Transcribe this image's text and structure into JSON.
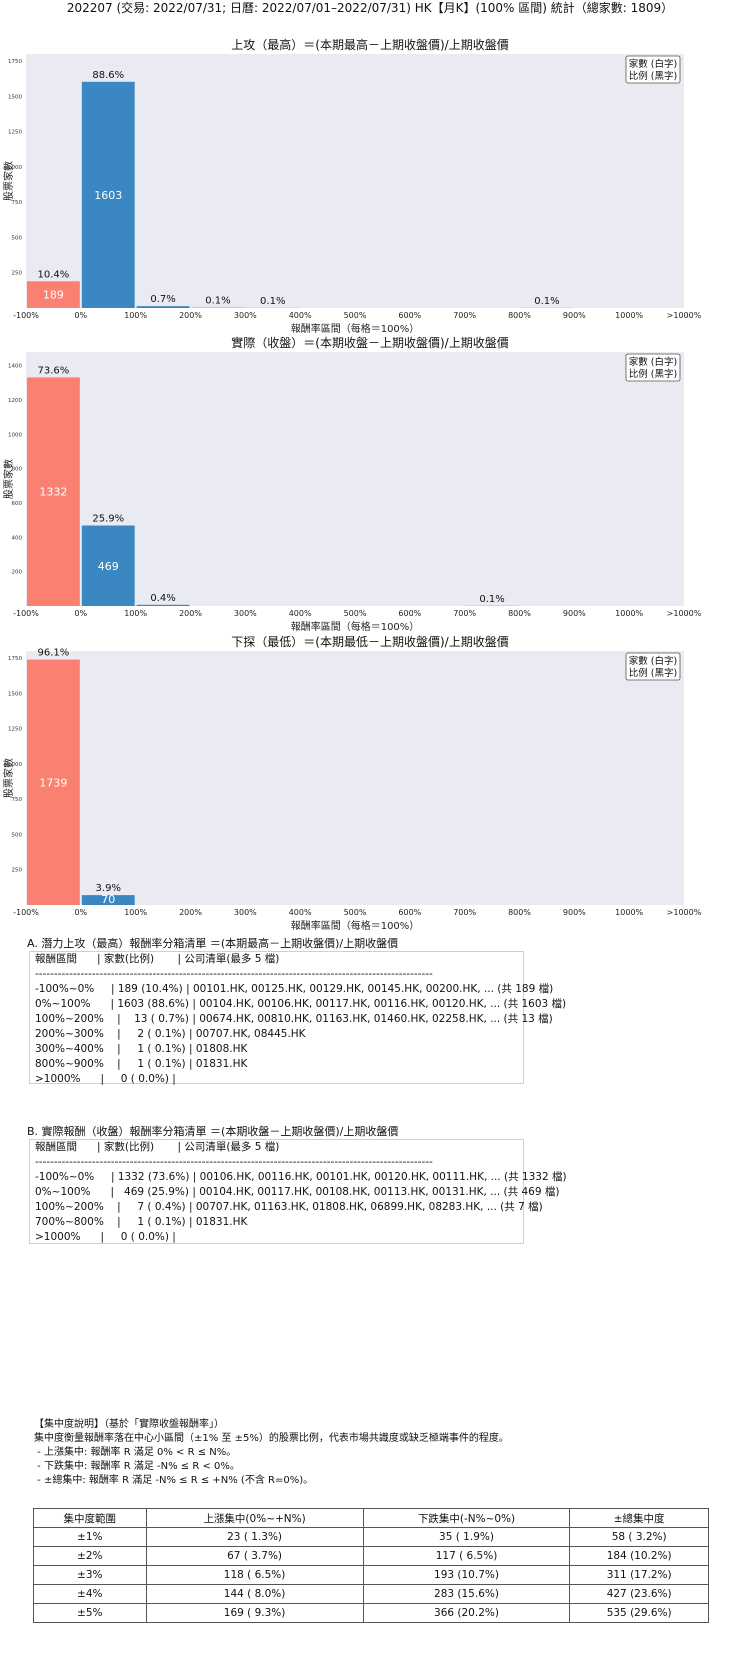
{
  "header": "202207 (交易: 2022/07/31; 日曆: 2022/07/01–2022/07/31) HK【月K】(100% 區間) 統計（總家數: 1809）",
  "chart_data": [
    {
      "type": "bar",
      "title": "上攻（最高）＝(本期最高－上期收盤價)/上期收盤價",
      "xlabel": "報酬率區間（每格＝100%）",
      "ylabel": "股票家數",
      "legend": [
        "家數 (白字)",
        "比例 (黑字)"
      ],
      "legend_position": "top-right",
      "categories": [
        "-100%~0%",
        "0%~100%",
        "100%~200%",
        "200%~300%",
        "300%~400%",
        "400%~500%",
        "500%~600%",
        "600%~700%",
        "700%~800%",
        "800%~900%",
        "900%~1000%",
        ">1000%"
      ],
      "x_tick_labels": [
        "-100%",
        "0%",
        "100%",
        "200%",
        "300%",
        "400%",
        "500%",
        "600%",
        "700%",
        "800%",
        "900%",
        "1000%",
        ">1000%"
      ],
      "values": [
        189,
        1603,
        13,
        2,
        1,
        0,
        0,
        0,
        0,
        1,
        0,
        0
      ],
      "percent_labels": [
        "10.4%",
        "88.6%",
        "0.7%",
        "0.1%",
        "0.1%",
        "",
        "",
        "",
        "",
        "0.1%",
        "",
        ""
      ],
      "bar_colors": [
        "#fa8072",
        "#3a87c2",
        "#3a87c2",
        "#3a87c2",
        "#3a87c2",
        "#3a87c2",
        "#3a87c2",
        "#3a87c2",
        "#3a87c2",
        "#3a87c2",
        "#3a87c2",
        "#3a87c2"
      ],
      "ylim": [
        0,
        1800
      ],
      "yticks": [
        250,
        500,
        750,
        1000,
        1250,
        1500,
        1750
      ]
    },
    {
      "type": "bar",
      "title": "實際（收盤）＝(本期收盤－上期收盤價)/上期收盤價",
      "xlabel": "報酬率區間（每格＝100%）",
      "ylabel": "股票家數",
      "legend": [
        "家數 (白字)",
        "比例 (黑字)"
      ],
      "legend_position": "top-right",
      "categories": [
        "-100%~0%",
        "0%~100%",
        "100%~200%",
        "200%~300%",
        "300%~400%",
        "400%~500%",
        "500%~600%",
        "600%~700%",
        "700%~800%",
        "800%~900%",
        "900%~1000%",
        ">1000%"
      ],
      "x_tick_labels": [
        "-100%",
        "0%",
        "100%",
        "200%",
        "300%",
        "400%",
        "500%",
        "600%",
        "700%",
        "800%",
        "900%",
        "1000%",
        ">1000%"
      ],
      "values": [
        1332,
        469,
        7,
        0,
        0,
        0,
        0,
        0,
        1,
        0,
        0,
        0
      ],
      "percent_labels": [
        "73.6%",
        "25.9%",
        "0.4%",
        "",
        "",
        "",
        "",
        "",
        "0.1%",
        "",
        "",
        ""
      ],
      "bar_colors": [
        "#fa8072",
        "#3a87c2",
        "#3a87c2",
        "#3a87c2",
        "#3a87c2",
        "#3a87c2",
        "#3a87c2",
        "#3a87c2",
        "#3a87c2",
        "#3a87c2",
        "#3a87c2",
        "#3a87c2"
      ],
      "ylim": [
        0,
        1480
      ],
      "yticks": [
        200,
        400,
        600,
        800,
        1000,
        1200,
        1400
      ]
    },
    {
      "type": "bar",
      "title": "下探（最低）＝(本期最低－上期收盤價)/上期收盤價",
      "xlabel": "報酬率區間（每格＝100%）",
      "ylabel": "股票家數",
      "legend": [
        "家數 (白字)",
        "比例 (黑字)"
      ],
      "legend_position": "top-right",
      "categories": [
        "-100%~0%",
        "0%~100%",
        "100%~200%",
        "200%~300%",
        "300%~400%",
        "400%~500%",
        "500%~600%",
        "600%~700%",
        "700%~800%",
        "800%~900%",
        "900%~1000%",
        ">1000%"
      ],
      "x_tick_labels": [
        "-100%",
        "0%",
        "100%",
        "200%",
        "300%",
        "400%",
        "500%",
        "600%",
        "700%",
        "800%",
        "900%",
        "1000%",
        ">1000%"
      ],
      "values": [
        1739,
        70,
        0,
        0,
        0,
        0,
        0,
        0,
        0,
        0,
        0,
        0
      ],
      "percent_labels": [
        "96.1%",
        "3.9%",
        "",
        "",
        "",
        "",
        "",
        "",
        "",
        "",
        "",
        ""
      ],
      "bar_colors": [
        "#fa8072",
        "#3a87c2",
        "#3a87c2",
        "#3a87c2",
        "#3a87c2",
        "#3a87c2",
        "#3a87c2",
        "#3a87c2",
        "#3a87c2",
        "#3a87c2",
        "#3a87c2",
        "#3a87c2"
      ],
      "ylim": [
        0,
        1800
      ],
      "yticks": [
        250,
        500,
        750,
        1000,
        1250,
        1500,
        1750
      ]
    }
  ],
  "listA": {
    "title": "A. 潛力上攻（最高）報酬率分箱清單 ＝(本期最高－上期收盤價)/上期收盤價",
    "rows": [
      "報酬區間      | 家數(比例)       | 公司清單(最多 5 檔)",
      "---------------------------------------------------------------------------------------------------------",
      "-100%~0%     | 189 (10.4%) | 00101.HK, 00125.HK, 00129.HK, 00145.HK, 00200.HK, ... (共 189 檔)",
      "0%~100%      | 1603 (88.6%) | 00104.HK, 00106.HK, 00117.HK, 00116.HK, 00120.HK, ... (共 1603 檔)",
      "100%~200%    |    13 ( 0.7%) | 00674.HK, 00810.HK, 01163.HK, 01460.HK, 02258.HK, ... (共 13 檔)",
      "200%~300%    |     2 ( 0.1%) | 00707.HK, 08445.HK",
      "300%~400%    |     1 ( 0.1%) | 01808.HK",
      "800%~900%    |     1 ( 0.1%) | 01831.HK",
      ">1000%      |     0 ( 0.0%) |"
    ]
  },
  "listB": {
    "title": "B. 實際報酬（收盤）報酬率分箱清單 ＝(本期收盤－上期收盤價)/上期收盤價",
    "rows": [
      "報酬區間      | 家數(比例)       | 公司清單(最多 5 檔)",
      "---------------------------------------------------------------------------------------------------------",
      "-100%~0%     | 1332 (73.6%) | 00106.HK, 00116.HK, 00101.HK, 00120.HK, 00111.HK, ... (共 1332 檔)",
      "0%~100%      |   469 (25.9%) | 00104.HK, 00117.HK, 00108.HK, 00113.HK, 00131.HK, ... (共 469 檔)",
      "100%~200%    |     7 ( 0.4%) | 00707.HK, 01163.HK, 01808.HK, 06899.HK, 08283.HK, ... (共 7 檔)",
      "700%~800%    |     1 ( 0.1%) | 01831.HK",
      ">1000%      |     0 ( 0.0%) |"
    ]
  },
  "concentration": {
    "lines": [
      "【集中度說明】（基於「實際收盤報酬率」）",
      "集中度衡量報酬率落在中心小區間（±1% 至 ±5%）的股票比例，代表市場共識度或缺乏極端事件的程度。",
      " - 上漲集中: 報酬率 R 滿足 0% < R ≤ N%。",
      " - 下跌集中: 報酬率 R 滿足 -N% ≤ R < 0%。",
      " - ±總集中: 報酬率 R 滿足 -N% ≤ R ≤ +N% (不含 R=0%)。"
    ],
    "table": {
      "headers": [
        "集中度範圍",
        "上漲集中(0%~+N%)",
        "下跌集中(-N%~0%)",
        "±總集中度"
      ],
      "rows": [
        [
          "±1%",
          "23 ( 1.3%)",
          "35 ( 1.9%)",
          "58 ( 3.2%)"
        ],
        [
          "±2%",
          "67 ( 3.7%)",
          "117 ( 6.5%)",
          "184 (10.2%)"
        ],
        [
          "±3%",
          "118 ( 6.5%)",
          "193 (10.7%)",
          "311 (17.2%)"
        ],
        [
          "±4%",
          "144 ( 8.0%)",
          "283 (15.6%)",
          "427 (23.6%)"
        ],
        [
          "±5%",
          "169 ( 9.3%)",
          "366 (20.2%)",
          "535 (29.6%)"
        ]
      ]
    }
  }
}
